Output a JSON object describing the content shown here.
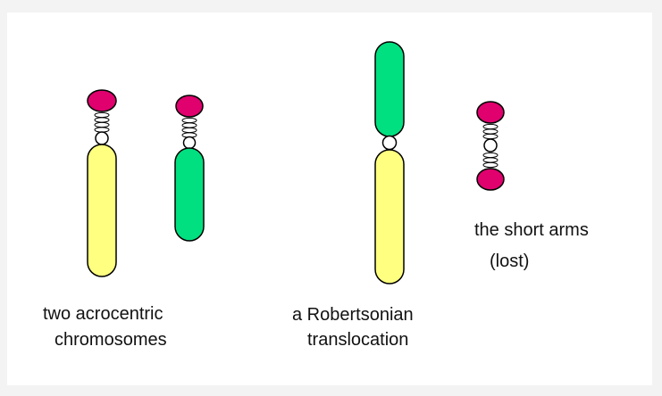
{
  "labels": {
    "acrocentric_line1": "two acrocentric",
    "acrocentric_line2": "chromosomes",
    "robertsonian_line1": "a Robertsonian",
    "robertsonian_line2": "translocation",
    "short_arms_line1": "the short arms",
    "short_arms_line2": "(lost)"
  },
  "colors": {
    "background": "#f3f3f3",
    "panel": "#ffffff",
    "yellow_arm": "#ffff80",
    "green_arm": "#00e080",
    "satellite": "#e0006e",
    "outline": "#000000"
  }
}
